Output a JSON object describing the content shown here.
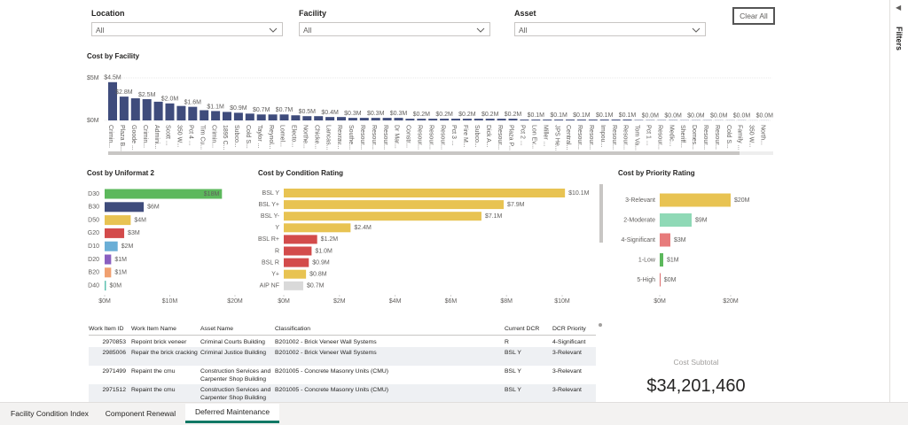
{
  "filters": [
    {
      "label": "Location",
      "value": "All"
    },
    {
      "label": "Facility",
      "value": "All"
    },
    {
      "label": "Asset",
      "value": "All"
    }
  ],
  "clear_button": "Clear All",
  "filters_pane": "Filters",
  "chart_data": [
    {
      "type": "bar",
      "title": "Cost by Facility",
      "categories": [
        "Crimin...",
        "Plaza B...",
        "Goode ...",
        "Crimin...",
        "Admini...",
        "Scott ...",
        "350 W...",
        "Pct 4 ...",
        "Tim Cu...",
        "Crimin...",
        "1895 C...",
        "Subco...",
        "Cold S...",
        "Taylor ...",
        "Reynol...",
        "Lomel...",
        "Electo...",
        "Northe...",
        "Chicke...",
        "Lancas...",
        "Rexrav...",
        "Southe...",
        "Resour...",
        "Resour...",
        "Resour...",
        "Dr Mar...",
        "Constr...",
        "Resour...",
        "Resour...",
        "Resour...",
        "Pct 3 ...",
        "Fire M...",
        "Subco...",
        "Dick A...",
        "Resour...",
        "Plaza P...",
        "Pct 2 ...",
        "Lon Ev...",
        "Miller ...",
        "JPS He...",
        "Central...",
        "Resour...",
        "Resour...",
        "Impou...",
        "Resour...",
        "Resour...",
        "Tom Va...",
        "Pct 1 ...",
        "Resour...",
        "Medic...",
        "Sheriff...",
        "Domes...",
        "Resour...",
        "Resour...",
        "Cold S...",
        "Family ...",
        "350 W...",
        "North..."
      ],
      "values": [
        4.5,
        2.8,
        2.6,
        2.5,
        2.2,
        2.0,
        1.7,
        1.6,
        1.2,
        1.1,
        1.0,
        0.9,
        0.8,
        0.7,
        0.7,
        0.7,
        0.6,
        0.5,
        0.5,
        0.4,
        0.4,
        0.3,
        0.3,
        0.3,
        0.3,
        0.3,
        0.2,
        0.2,
        0.2,
        0.2,
        0.2,
        0.2,
        0.2,
        0.2,
        0.2,
        0.2,
        0.1,
        0.1,
        0.1,
        0.1,
        0.1,
        0.1,
        0.1,
        0.1,
        0.1,
        0.1,
        0.05,
        0.04,
        0.04,
        0.04,
        0.03,
        0.03,
        0.03,
        0.02,
        0.02,
        0.02,
        0.01,
        0.01
      ],
      "value_labels": [
        "$4.5M",
        "$2.8M",
        null,
        "$2.5M",
        null,
        "$2.0M",
        null,
        "$1.6M",
        null,
        "$1.1M",
        null,
        "$0.9M",
        null,
        "$0.7M",
        null,
        "$0.7M",
        null,
        "$0.5M",
        null,
        "$0.4M",
        null,
        "$0.3M",
        null,
        "$0.3M",
        null,
        "$0.3M",
        null,
        "$0.2M",
        null,
        "$0.2M",
        null,
        "$0.2M",
        null,
        "$0.2M",
        null,
        "$0.2M",
        null,
        "$0.1M",
        null,
        "$0.1M",
        null,
        "$0.1M",
        null,
        "$0.1M",
        null,
        "$0.1M",
        null,
        "$0.0M",
        null,
        "$0.0M",
        null,
        "$0.0M",
        null,
        "$0.0M",
        null,
        "$0.0M",
        null,
        "$0.0M"
      ],
      "color": "#3f4c7c",
      "ylim": [
        0,
        5
      ],
      "yticks": [
        {
          "value": 0,
          "label": "$0M"
        },
        {
          "value": 5,
          "label": "$5M"
        }
      ],
      "grid": true
    },
    {
      "type": "barh",
      "title": "Cost by Uniformat 2",
      "categories": [
        "D30",
        "B30",
        "D50",
        "G20",
        "D10",
        "D20",
        "B20",
        "D40"
      ],
      "values": [
        18,
        6,
        4,
        3,
        2,
        1,
        1,
        0.2
      ],
      "value_labels": [
        "$18M",
        "$6M",
        "$4M",
        "$3M",
        "$2M",
        "$1M",
        "$1M",
        "$0M"
      ],
      "colors": [
        "#5cb85c",
        "#3f4c7c",
        "#e8c352",
        "#d34b4b",
        "#6aaed6",
        "#8a5fc0",
        "#f0a070",
        "#5cc0b0"
      ],
      "xlim": [
        0,
        20
      ],
      "xticks": [
        {
          "value": 0,
          "label": "$0M"
        },
        {
          "value": 10,
          "label": "$10M"
        },
        {
          "value": 20,
          "label": "$20M"
        }
      ]
    },
    {
      "type": "barh",
      "title": "Cost by Condition Rating",
      "categories": [
        "BSL Y",
        "BSL Y+",
        "BSL Y-",
        "Y",
        "BSL R+",
        "R",
        "BSL R",
        "Y+",
        "AIP NF"
      ],
      "values": [
        10.1,
        7.9,
        7.1,
        2.4,
        1.2,
        1.0,
        0.9,
        0.8,
        0.7
      ],
      "value_labels": [
        "$10.1M",
        "$7.9M",
        "$7.1M",
        "$2.4M",
        "$1.2M",
        "$1.0M",
        "$0.9M",
        "$0.8M",
        "$0.7M"
      ],
      "colors": [
        "#e8c352",
        "#e8c352",
        "#e8c352",
        "#e8c352",
        "#d34b4b",
        "#d34b4b",
        "#d34b4b",
        "#e8c352",
        "#d9d9d9"
      ],
      "xlim": [
        0,
        11
      ],
      "xticks": [
        {
          "value": 0,
          "label": "$0M"
        },
        {
          "value": 2,
          "label": "$2M"
        },
        {
          "value": 4,
          "label": "$4M"
        },
        {
          "value": 6,
          "label": "$6M"
        },
        {
          "value": 8,
          "label": "$8M"
        },
        {
          "value": 10,
          "label": "$10M"
        }
      ]
    },
    {
      "type": "barh",
      "title": "Cost by Priority Rating",
      "categories": [
        "3-Relevant",
        "2-Moderate",
        "4-Significant",
        "1-Low",
        "5-High"
      ],
      "values": [
        20,
        9,
        3,
        1,
        0.2
      ],
      "value_labels": [
        "$20M",
        "$9M",
        "$3M",
        "$1M",
        "$0M"
      ],
      "colors": [
        "#e8c352",
        "#8fd9b6",
        "#e77b7b",
        "#5cb85c",
        "#d34b4b"
      ],
      "xlim": [
        0,
        25
      ],
      "xticks": [
        {
          "value": 0,
          "label": "$0M"
        },
        {
          "value": 20,
          "label": "$20M"
        }
      ]
    }
  ],
  "table": {
    "columns": [
      "Work Item ID",
      "Work Item Name",
      "Asset Name",
      "Classification",
      "Current DCR",
      "DCR Priority"
    ],
    "rows": [
      [
        "2970853",
        "Repoint brick veneer",
        "Criminal Courts Building",
        "B201002 - Brick Veneer Wall Systems",
        "R",
        "4-Significant"
      ],
      [
        "2985006",
        "Repair the brick cracking",
        "Criminal Justice Building",
        "B201002 - Brick Veneer Wall Systems",
        "BSL Y",
        "3-Relevant"
      ],
      [
        "2971499",
        "Repaint the cmu",
        "Construction Services and Carpenter Shop Building",
        "B201005 - Concrete Masonry Units (CMU)",
        "BSL Y",
        "3-Relevant"
      ],
      [
        "2971512",
        "Repaint the cmu",
        "Construction Services and Carpenter Shop Building",
        "B201005 - Concrete Masonry Units (CMU)",
        "BSL Y",
        "3-Relevant"
      ]
    ]
  },
  "card": {
    "label": "Cost Subtotal",
    "value": "$34,201,460"
  },
  "tabs": [
    "Facility Condition Index",
    "Component Renewal",
    "Deferred Maintenance"
  ]
}
